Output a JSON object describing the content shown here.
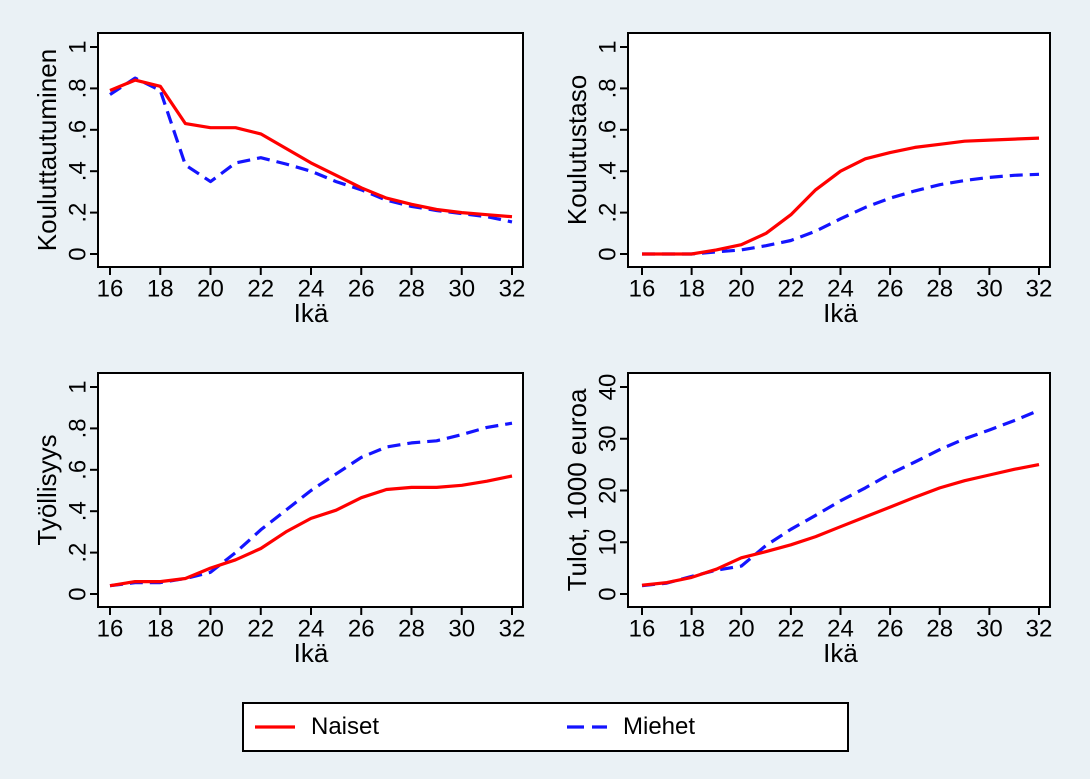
{
  "window": {
    "background_color": "#eaf1f5",
    "plot_background_color": "#ffffff",
    "axis_color": "#000000"
  },
  "legend": {
    "background": "#ffffff",
    "border_color": "#000000",
    "position": "bottom-center",
    "items": [
      {
        "label": "Naiset",
        "color": "#ff0000",
        "line_style": "solid"
      },
      {
        "label": "Miehet",
        "color": "#1414ff",
        "line_style": "dashed"
      }
    ]
  },
  "chart_data": [
    {
      "id": "kouluttautuminen",
      "type": "line",
      "title": "",
      "xlabel": "Ikä",
      "ylabel": "Kouluttautuminen",
      "grid": false,
      "x": [
        16,
        17,
        18,
        19,
        20,
        21,
        22,
        23,
        24,
        25,
        26,
        27,
        28,
        29,
        30,
        31,
        32
      ],
      "xticks": [
        16,
        18,
        20,
        22,
        24,
        26,
        28,
        30,
        32
      ],
      "xlim": [
        16,
        32
      ],
      "ylim": [
        0,
        1
      ],
      "ytick_values": [
        0,
        0.2,
        0.4,
        0.6,
        0.8,
        1
      ],
      "ytick_labels": [
        "0",
        ".2",
        ".4",
        ".6",
        ".8",
        "1"
      ],
      "series": [
        {
          "name": "Naiset",
          "color": "#ff0000",
          "dash": "solid",
          "values": [
            0.79,
            0.84,
            0.81,
            0.63,
            0.61,
            0.61,
            0.58,
            0.51,
            0.44,
            0.38,
            0.32,
            0.27,
            0.24,
            0.215,
            0.2,
            0.19,
            0.18
          ]
        },
        {
          "name": "Miehet",
          "color": "#1414ff",
          "dash": "dashed",
          "values": [
            0.77,
            0.85,
            0.79,
            0.43,
            0.35,
            0.44,
            0.465,
            0.435,
            0.4,
            0.35,
            0.31,
            0.26,
            0.23,
            0.21,
            0.195,
            0.18,
            0.155
          ]
        }
      ]
    },
    {
      "id": "koulutustaso",
      "type": "line",
      "title": "",
      "xlabel": "Ikä",
      "ylabel": "Koulutustaso",
      "grid": false,
      "x": [
        16,
        17,
        18,
        19,
        20,
        21,
        22,
        23,
        24,
        25,
        26,
        27,
        28,
        29,
        30,
        31,
        32
      ],
      "xticks": [
        16,
        18,
        20,
        22,
        24,
        26,
        28,
        30,
        32
      ],
      "xlim": [
        16,
        32
      ],
      "ylim": [
        0,
        1
      ],
      "ytick_values": [
        0,
        0.2,
        0.4,
        0.6,
        0.8,
        1
      ],
      "ytick_labels": [
        "0",
        ".2",
        ".4",
        ".6",
        ".8",
        "1"
      ],
      "series": [
        {
          "name": "Naiset",
          "color": "#ff0000",
          "dash": "solid",
          "values": [
            0,
            0,
            0,
            0.02,
            0.045,
            0.1,
            0.19,
            0.31,
            0.4,
            0.46,
            0.49,
            0.515,
            0.53,
            0.545,
            0.55,
            0.555,
            0.56
          ]
        },
        {
          "name": "Miehet",
          "color": "#1414ff",
          "dash": "dashed",
          "values": [
            0,
            0,
            0,
            0.01,
            0.02,
            0.04,
            0.065,
            0.11,
            0.17,
            0.225,
            0.27,
            0.305,
            0.335,
            0.355,
            0.37,
            0.38,
            0.385
          ]
        }
      ]
    },
    {
      "id": "tyollisyys",
      "type": "line",
      "title": "",
      "xlabel": "Ikä",
      "ylabel": "Työllisyys",
      "grid": false,
      "x": [
        16,
        17,
        18,
        19,
        20,
        21,
        22,
        23,
        24,
        25,
        26,
        27,
        28,
        29,
        30,
        31,
        32
      ],
      "xticks": [
        16,
        18,
        20,
        22,
        24,
        26,
        28,
        30,
        32
      ],
      "xlim": [
        16,
        32
      ],
      "ylim": [
        0,
        1
      ],
      "ytick_values": [
        0,
        0.2,
        0.4,
        0.6,
        0.8,
        1
      ],
      "ytick_labels": [
        "0",
        ".2",
        ".4",
        ".6",
        ".8",
        "1"
      ],
      "series": [
        {
          "name": "Naiset",
          "color": "#ff0000",
          "dash": "solid",
          "values": [
            0.04,
            0.06,
            0.06,
            0.075,
            0.125,
            0.165,
            0.22,
            0.3,
            0.365,
            0.405,
            0.465,
            0.505,
            0.515,
            0.515,
            0.525,
            0.545,
            0.57
          ]
        },
        {
          "name": "Miehet",
          "color": "#1414ff",
          "dash": "dashed",
          "values": [
            0.04,
            0.055,
            0.055,
            0.075,
            0.105,
            0.2,
            0.31,
            0.405,
            0.5,
            0.58,
            0.66,
            0.71,
            0.73,
            0.74,
            0.77,
            0.805,
            0.825
          ]
        }
      ]
    },
    {
      "id": "tulot",
      "type": "line",
      "title": "",
      "xlabel": "Ikä",
      "ylabel": "Tulot, 1000 euroa",
      "grid": false,
      "x": [
        16,
        17,
        18,
        19,
        20,
        21,
        22,
        23,
        24,
        25,
        26,
        27,
        28,
        29,
        30,
        31,
        32
      ],
      "xticks": [
        16,
        18,
        20,
        22,
        24,
        26,
        28,
        30,
        32
      ],
      "xlim": [
        16,
        32
      ],
      "ylim": [
        0,
        40
      ],
      "ytick_values": [
        0,
        10,
        20,
        30,
        40
      ],
      "ytick_labels": [
        "0",
        "10",
        "20",
        "30",
        "40"
      ],
      "series": [
        {
          "name": "Naiset",
          "color": "#ff0000",
          "dash": "solid",
          "values": [
            1.7,
            2.2,
            3.2,
            4.8,
            7.0,
            8.2,
            9.5,
            11.1,
            13.0,
            14.9,
            16.8,
            18.7,
            20.5,
            21.9,
            23.0,
            24.1,
            25.0
          ]
        },
        {
          "name": "Miehet",
          "color": "#1414ff",
          "dash": "dashed",
          "values": [
            1.6,
            2.1,
            3.4,
            4.6,
            5.4,
            9.4,
            12.5,
            15.2,
            18.0,
            20.5,
            23.2,
            25.5,
            27.9,
            30.0,
            31.7,
            33.5,
            35.5
          ]
        }
      ]
    }
  ]
}
